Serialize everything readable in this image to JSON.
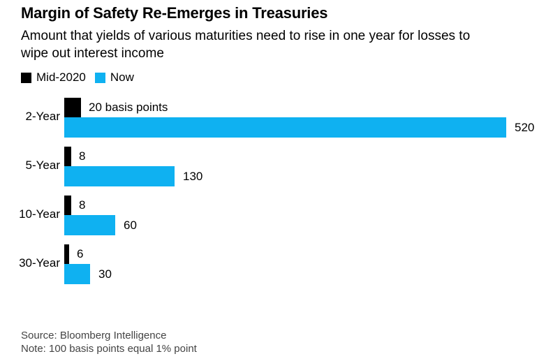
{
  "header": {
    "title": "Margin of Safety Re-Emerges in Treasuries",
    "subtitle": "Amount that yields of various maturities need to rise in one year for losses to wipe out interest income",
    "subtitle_lines": [
      "Amount that yields of various maturities need to rise in one year for losses to",
      "wipe out interest income"
    ]
  },
  "legend": [
    {
      "label": "Mid-2020",
      "color": "#000000"
    },
    {
      "label": "Now",
      "color": "#0fb1f1"
    }
  ],
  "chart_data": {
    "type": "bar",
    "orientation": "horizontal",
    "title": "Margin of Safety Re-Emerges in Treasuries",
    "subtitle": "Amount that yields of various maturities need to rise in one year for losses to wipe out interest income",
    "unit": "basis points",
    "categories": [
      "2-Year",
      "5-Year",
      "10-Year",
      "30-Year"
    ],
    "series": [
      {
        "name": "Mid-2020",
        "color": "#000000",
        "values": [
          20,
          8,
          8,
          6
        ],
        "labels": [
          "20 basis points",
          "8",
          "8",
          "6"
        ]
      },
      {
        "name": "Now",
        "color": "#0fb1f1",
        "values": [
          520,
          130,
          60,
          30
        ],
        "labels": [
          "520",
          "130",
          "60",
          "30"
        ]
      }
    ],
    "xlim": [
      0,
      520
    ],
    "grid": false,
    "axis_ticks": "none",
    "value_labels": true,
    "legend_position": "top-left"
  },
  "footer": {
    "source": "Source: Bloomberg Intelligence",
    "note": "Note: 100 basis points equal 1% point"
  }
}
